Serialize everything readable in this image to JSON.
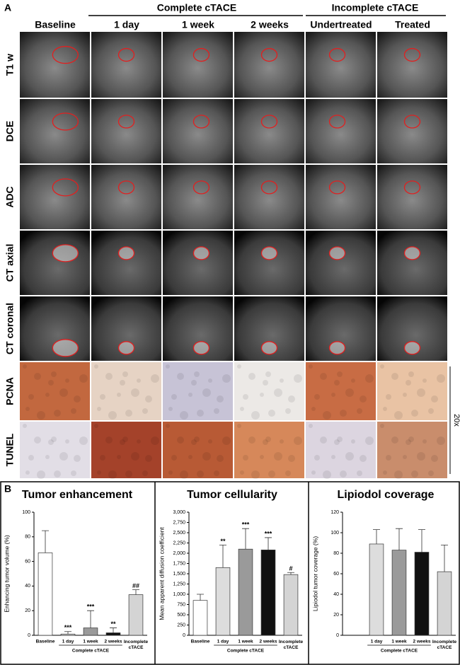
{
  "figure": {
    "label": "A",
    "groups": [
      "Complete cTACE",
      "Incomplete cTACE"
    ],
    "columns": [
      "Baseline",
      "1 day",
      "1 week",
      "2 weeks",
      "Undertreated",
      "Treated"
    ],
    "rows": [
      "T1 w",
      "DCE",
      "ADC",
      "CT axial",
      "CT coronal",
      "PCNA",
      "TUNEL"
    ],
    "scale": "20x",
    "panel_b_label": "B"
  },
  "chart_data": [
    {
      "type": "bar",
      "title": "Tumor enhancement",
      "y_label": "Enhancing tumor volume (%)",
      "categories": [
        "Baseline",
        "1 day",
        "1 week",
        "2 weeks",
        "Incomplete cTACE"
      ],
      "values": [
        67,
        1,
        6,
        2,
        33
      ],
      "errors": [
        18,
        2,
        14,
        4,
        4
      ],
      "annotations": [
        null,
        "***",
        "***",
        "**",
        "##"
      ],
      "colors": [
        "#ffffff",
        "#dddddd",
        "#9a9a9a",
        "#111111",
        "#d4d4d4"
      ],
      "group_label": "Complete cTACE",
      "ylim": [
        0,
        100
      ],
      "yticks": [
        0,
        20,
        40,
        60,
        80,
        100
      ]
    },
    {
      "type": "bar",
      "title": "Tumor cellularity",
      "y_label": "Mean apparent diffusion coefficient",
      "categories": [
        "Baseline",
        "1 day",
        "1 week",
        "2 weeks",
        "Incomplete cTACE"
      ],
      "values": [
        850,
        1650,
        2100,
        2080,
        1480
      ],
      "errors": [
        150,
        550,
        500,
        300,
        50
      ],
      "annotations": [
        null,
        "**",
        "***",
        "***",
        "#"
      ],
      "colors": [
        "#ffffff",
        "#dddddd",
        "#9a9a9a",
        "#111111",
        "#d4d4d4"
      ],
      "group_label": "Complete cTACE",
      "ylim": [
        0,
        3000
      ],
      "yticks": [
        0,
        250,
        500,
        750,
        {
          "value": 1000,
          "label": "1,000"
        },
        {
          "value": 1250,
          "label": "1,250"
        },
        {
          "value": 1500,
          "label": "1,500"
        },
        {
          "value": 1750,
          "label": "1,750"
        },
        {
          "value": 2000,
          "label": "2,000"
        },
        {
          "value": 2250,
          "label": "2,250"
        },
        {
          "value": 2500,
          "label": "2,500"
        },
        {
          "value": 2750,
          "label": "2,750"
        },
        {
          "value": 3000,
          "label": "3,000"
        }
      ]
    },
    {
      "type": "bar",
      "title": "Lipiodol coverage",
      "y_label": "Lipiodol tumor coverage (%)",
      "categories": [
        null,
        "1 day",
        "1 week",
        "2 weeks",
        "Incomplete cTACE"
      ],
      "values": [
        null,
        89,
        83,
        81,
        62
      ],
      "errors": [
        null,
        14,
        21,
        22,
        26
      ],
      "annotations": [
        null,
        null,
        null,
        null,
        null
      ],
      "colors": [
        "#ffffff",
        "#dddddd",
        "#9a9a9a",
        "#111111",
        "#d4d4d4"
      ],
      "group_label": "Complete cTACE",
      "ylim": [
        0,
        120
      ],
      "yticks": [
        0,
        20,
        40,
        60,
        80,
        100,
        120
      ]
    }
  ]
}
